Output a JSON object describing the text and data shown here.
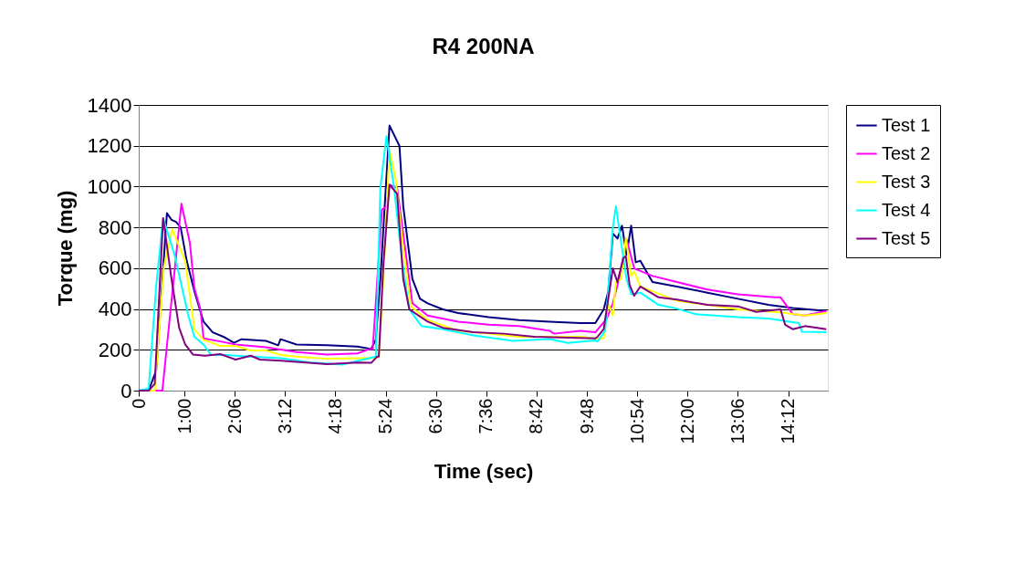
{
  "chart_data": {
    "type": "line",
    "title": "R4 200NA",
    "xlabel": "Time (sec)",
    "ylabel": "Torque (mg)",
    "xlim": [
      0,
      904
    ],
    "ylim": [
      0,
      1400
    ],
    "yticks": [
      0,
      200,
      400,
      600,
      800,
      1000,
      1200,
      1400
    ],
    "xticks": [
      {
        "value": 0,
        "label": "0"
      },
      {
        "value": 60,
        "label": "1:00"
      },
      {
        "value": 126,
        "label": "2:06"
      },
      {
        "value": 192,
        "label": "3:12"
      },
      {
        "value": 258,
        "label": "4:18"
      },
      {
        "value": 324,
        "label": "5:24"
      },
      {
        "value": 390,
        "label": "6:30"
      },
      {
        "value": 456,
        "label": "7:36"
      },
      {
        "value": 522,
        "label": "8:42"
      },
      {
        "value": 588,
        "label": "9:48"
      },
      {
        "value": 654,
        "label": "10:54"
      },
      {
        "value": 720,
        "label": "12:00"
      },
      {
        "value": 786,
        "label": "13:06"
      },
      {
        "value": 852,
        "label": "14:12"
      }
    ],
    "grid": "y",
    "legend": "right",
    "line_style": "solid",
    "marker": "none",
    "series": [
      {
        "name": "Test 1",
        "color": "#000080",
        "x": [
          0,
          13,
          23,
          37,
          43,
          49,
          55,
          63,
          73,
          85,
          97,
          111,
          125,
          135,
          167,
          183,
          186,
          207,
          247,
          287,
          305,
          311,
          317,
          329,
          342,
          347,
          359,
          369,
          379,
          399,
          419,
          459,
          499,
          539,
          579,
          599,
          610,
          616,
          622,
          628,
          634,
          640,
          646,
          652,
          658,
          674,
          706,
          746,
          786,
          826,
          858,
          902
        ],
        "values": [
          0,
          0,
          100,
          870,
          837,
          827,
          800,
          636,
          487,
          338,
          286,
          264,
          234,
          252,
          244,
          222,
          252,
          226,
          222,
          216,
          204,
          249,
          547,
          1299,
          1200,
          904,
          547,
          450,
          428,
          398,
          380,
          360,
          346,
          338,
          331,
          331,
          398,
          487,
          770,
          745,
          808,
          666,
          808,
          629,
          636,
          532,
          510,
          480,
          450,
          420,
          405,
          390
        ]
      },
      {
        "name": "Test 2",
        "color": "#ff00ff",
        "x": [
          0,
          31,
          56,
          67,
          73,
          81,
          85,
          107,
          127,
          167,
          207,
          247,
          287,
          303,
          307,
          319,
          325,
          329,
          339,
          359,
          379,
          419,
          459,
          499,
          539,
          545,
          579,
          599,
          614,
          622,
          630,
          640,
          650,
          674,
          706,
          746,
          786,
          834,
          842,
          858,
          874,
          902
        ],
        "values": [
          0,
          0,
          916,
          726,
          502,
          398,
          256,
          241,
          226,
          212,
          189,
          177,
          182,
          204,
          204,
          887,
          901,
          1009,
          994,
          428,
          368,
          338,
          323,
          316,
          293,
          279,
          293,
          286,
          353,
          428,
          547,
          740,
          599,
          562,
          532,
          495,
          472,
          457,
          457,
          375,
          368,
          390
        ]
      },
      {
        "name": "Test 3",
        "color": "#ffff00",
        "x": [
          0,
          21,
          33,
          44,
          61,
          73,
          85,
          107,
          127,
          147,
          167,
          187,
          207,
          247,
          287,
          311,
          315,
          323,
          329,
          337,
          347,
          357,
          379,
          419,
          459,
          499,
          539,
          579,
          599,
          610,
          616,
          622,
          626,
          633,
          639,
          646,
          650,
          658,
          674,
          706,
          746,
          786,
          842,
          874,
          902
        ],
        "values": [
          0,
          0,
          606,
          790,
          636,
          301,
          249,
          219,
          219,
          197,
          197,
          174,
          167,
          156,
          159,
          159,
          167,
          696,
          1180,
          1039,
          696,
          413,
          346,
          293,
          279,
          264,
          264,
          264,
          256,
          256,
          428,
          368,
          532,
          547,
          748,
          562,
          584,
          510,
          487,
          440,
          420,
          398,
          383,
          368,
          380
        ]
      },
      {
        "name": "Test 4",
        "color": "#00ffff",
        "x": [
          0,
          13,
          23,
          32,
          47,
          57,
          65,
          73,
          85,
          95,
          115,
          147,
          187,
          227,
          267,
          287,
          311,
          317,
          325,
          335,
          345,
          355,
          371,
          399,
          439,
          491,
          539,
          563,
          599,
          602,
          612,
          622,
          626,
          634,
          640,
          646,
          658,
          682,
          706,
          730,
          786,
          826,
          866,
          870,
          902
        ],
        "values": [
          0,
          10,
          517,
          845,
          666,
          502,
          368,
          264,
          226,
          174,
          174,
          167,
          159,
          137,
          127,
          145,
          167,
          994,
          1247,
          994,
          651,
          398,
          316,
          301,
          271,
          244,
          253,
          234,
          246,
          241,
          294,
          800,
          904,
          696,
          547,
          472,
          480,
          420,
          402,
          375,
          360,
          353,
          331,
          289,
          286
        ]
      },
      {
        "name": "Test 5",
        "color": "#800080",
        "x": [
          0,
          13,
          21,
          32,
          43,
          53,
          61,
          71,
          87,
          107,
          127,
          147,
          159,
          187,
          247,
          287,
          305,
          313,
          315,
          321,
          329,
          339,
          347,
          355,
          379,
          399,
          439,
          479,
          519,
          599,
          602,
          610,
          622,
          628,
          636,
          639,
          644,
          650,
          658,
          682,
          706,
          746,
          786,
          810,
          842,
          848,
          858,
          874,
          902
        ],
        "values": [
          0,
          0,
          33,
          845,
          547,
          308,
          226,
          177,
          171,
          179,
          152,
          171,
          152,
          147,
          130,
          137,
          136,
          167,
          167,
          621,
          1009,
          964,
          547,
          398,
          338,
          308,
          286,
          279,
          264,
          256,
          264,
          301,
          599,
          532,
          651,
          659,
          517,
          465,
          510,
          457,
          446,
          420,
          413,
          386,
          398,
          323,
          301,
          316,
          301
        ]
      }
    ]
  }
}
